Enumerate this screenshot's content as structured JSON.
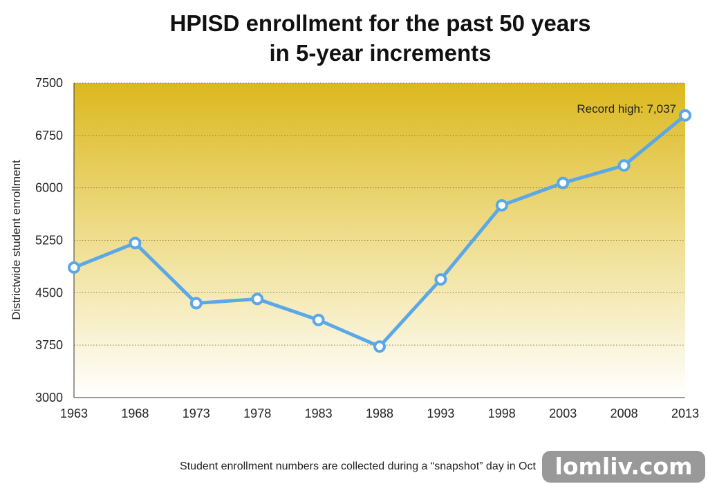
{
  "chart_data": {
    "type": "line",
    "title": [
      "HPISD enrollment for the past 50 years",
      "in 5-year increments"
    ],
    "ylabel": "Districtwide student enrollment",
    "xlabel": "",
    "ylim": [
      3000,
      7500
    ],
    "yticks": [
      3000,
      3750,
      4500,
      5250,
      6000,
      6750,
      7500
    ],
    "x": [
      1963,
      1968,
      1973,
      1978,
      1983,
      1988,
      1993,
      1998,
      2003,
      2008,
      2013
    ],
    "values": [
      4860,
      5210,
      4350,
      4410,
      4110,
      3730,
      4690,
      5750,
      6070,
      6320,
      7037
    ],
    "annotation": "Record high: 7,037",
    "grid": "horizontal dotted",
    "colors": {
      "line": "#5aa8e6",
      "marker_fill": "#ffffff",
      "background_top": "#dcb81e",
      "background_bottom": "#ffffff"
    }
  },
  "footnote": "Student enrollment numbers are collected during a “snapshot” day in Oct",
  "watermark": "lomliv.com"
}
